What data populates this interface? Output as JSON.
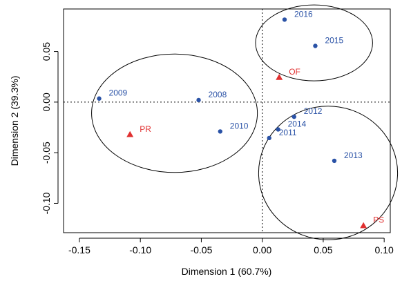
{
  "chart_data": {
    "type": "scatter",
    "xlabel": "Dimension 1 (60.7%)",
    "ylabel": "Dimension 2 (39.3%)",
    "xlim": [
      -0.163,
      0.105
    ],
    "ylim": [
      -0.129,
      0.092
    ],
    "x_ticks": [
      {
        "value": -0.15,
        "label": "-0.15"
      },
      {
        "value": -0.1,
        "label": "-0.10"
      },
      {
        "value": -0.05,
        "label": "-0.05"
      },
      {
        "value": 0.0,
        "label": "0.00"
      },
      {
        "value": 0.05,
        "label": "0.05"
      },
      {
        "value": 0.1,
        "label": "0.10"
      }
    ],
    "y_ticks": [
      {
        "value": 0.05,
        "label": "0.05"
      },
      {
        "value": 0.0,
        "label": "0.00"
      },
      {
        "value": -0.05,
        "label": "-0.05"
      },
      {
        "value": -0.1,
        "label": "-0.10"
      }
    ],
    "reference_lines": {
      "x": 0,
      "y": 0,
      "style": "dotted"
    },
    "series": [
      {
        "color": "#2a52a6",
        "marker": "circle",
        "points": [
          {
            "label": "2009",
            "x": -0.1338,
            "y": 0.0035
          },
          {
            "label": "2008",
            "x": -0.0522,
            "y": 0.002
          },
          {
            "label": "2010",
            "x": -0.0345,
            "y": -0.029
          },
          {
            "label": "2016",
            "x": 0.0183,
            "y": 0.0815
          },
          {
            "label": "2015",
            "x": 0.0435,
            "y": 0.0555
          },
          {
            "label": "2012",
            "x": 0.0261,
            "y": -0.0145
          },
          {
            "label": "2014",
            "x": 0.013,
            "y": -0.027
          },
          {
            "label": "2011",
            "x": 0.0057,
            "y": -0.0355
          },
          {
            "label": "2013",
            "x": 0.0591,
            "y": -0.058
          }
        ]
      },
      {
        "color": "#e03030",
        "marker": "triangle",
        "points": [
          {
            "label": "PR",
            "x": -0.1085,
            "y": -0.032
          },
          {
            "label": "OF",
            "x": 0.0139,
            "y": 0.0245
          },
          {
            "label": "PS",
            "x": 0.083,
            "y": -0.122
          }
        ]
      }
    ],
    "ellipses": [
      {
        "cx": -0.072,
        "cy": -0.011,
        "rx": 0.068,
        "ry": 0.0585
      },
      {
        "cx": 0.0425,
        "cy": 0.0585,
        "rx": 0.048,
        "ry": 0.0375
      },
      {
        "cx": 0.054,
        "cy": -0.07,
        "rx": 0.057,
        "ry": 0.066
      }
    ]
  }
}
